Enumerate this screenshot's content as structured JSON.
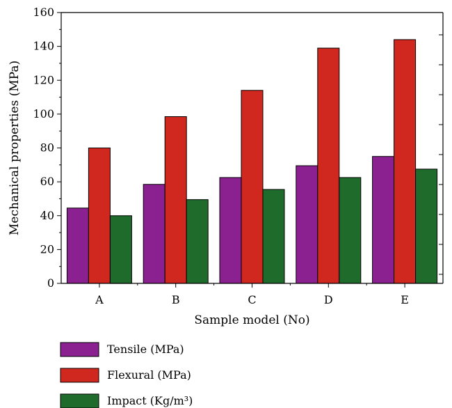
{
  "chart_data": {
    "type": "bar",
    "title": "",
    "xlabel": "Sample model (No)",
    "ylabel": "Mechanical properties (MPa)",
    "ylim": [
      0,
      160
    ],
    "yticks": [
      0,
      20,
      40,
      60,
      80,
      100,
      120,
      140,
      160
    ],
    "categories": [
      "A",
      "B",
      "C",
      "D",
      "E"
    ],
    "series": [
      {
        "name": "Tensile (MPa)",
        "color": "#8B2191",
        "values": [
          44.5,
          58.5,
          62.5,
          69.5,
          75
        ]
      },
      {
        "name": "Flexural (MPa)",
        "color": "#D0271F",
        "values": [
          80,
          98.5,
          114,
          139,
          144
        ]
      },
      {
        "name": "Impact (Kg/m³)",
        "color": "#1E6B2C",
        "values": [
          40,
          49.5,
          55.5,
          62.5,
          67.5
        ]
      }
    ],
    "legend_position": "bottom-left",
    "grid": false
  }
}
